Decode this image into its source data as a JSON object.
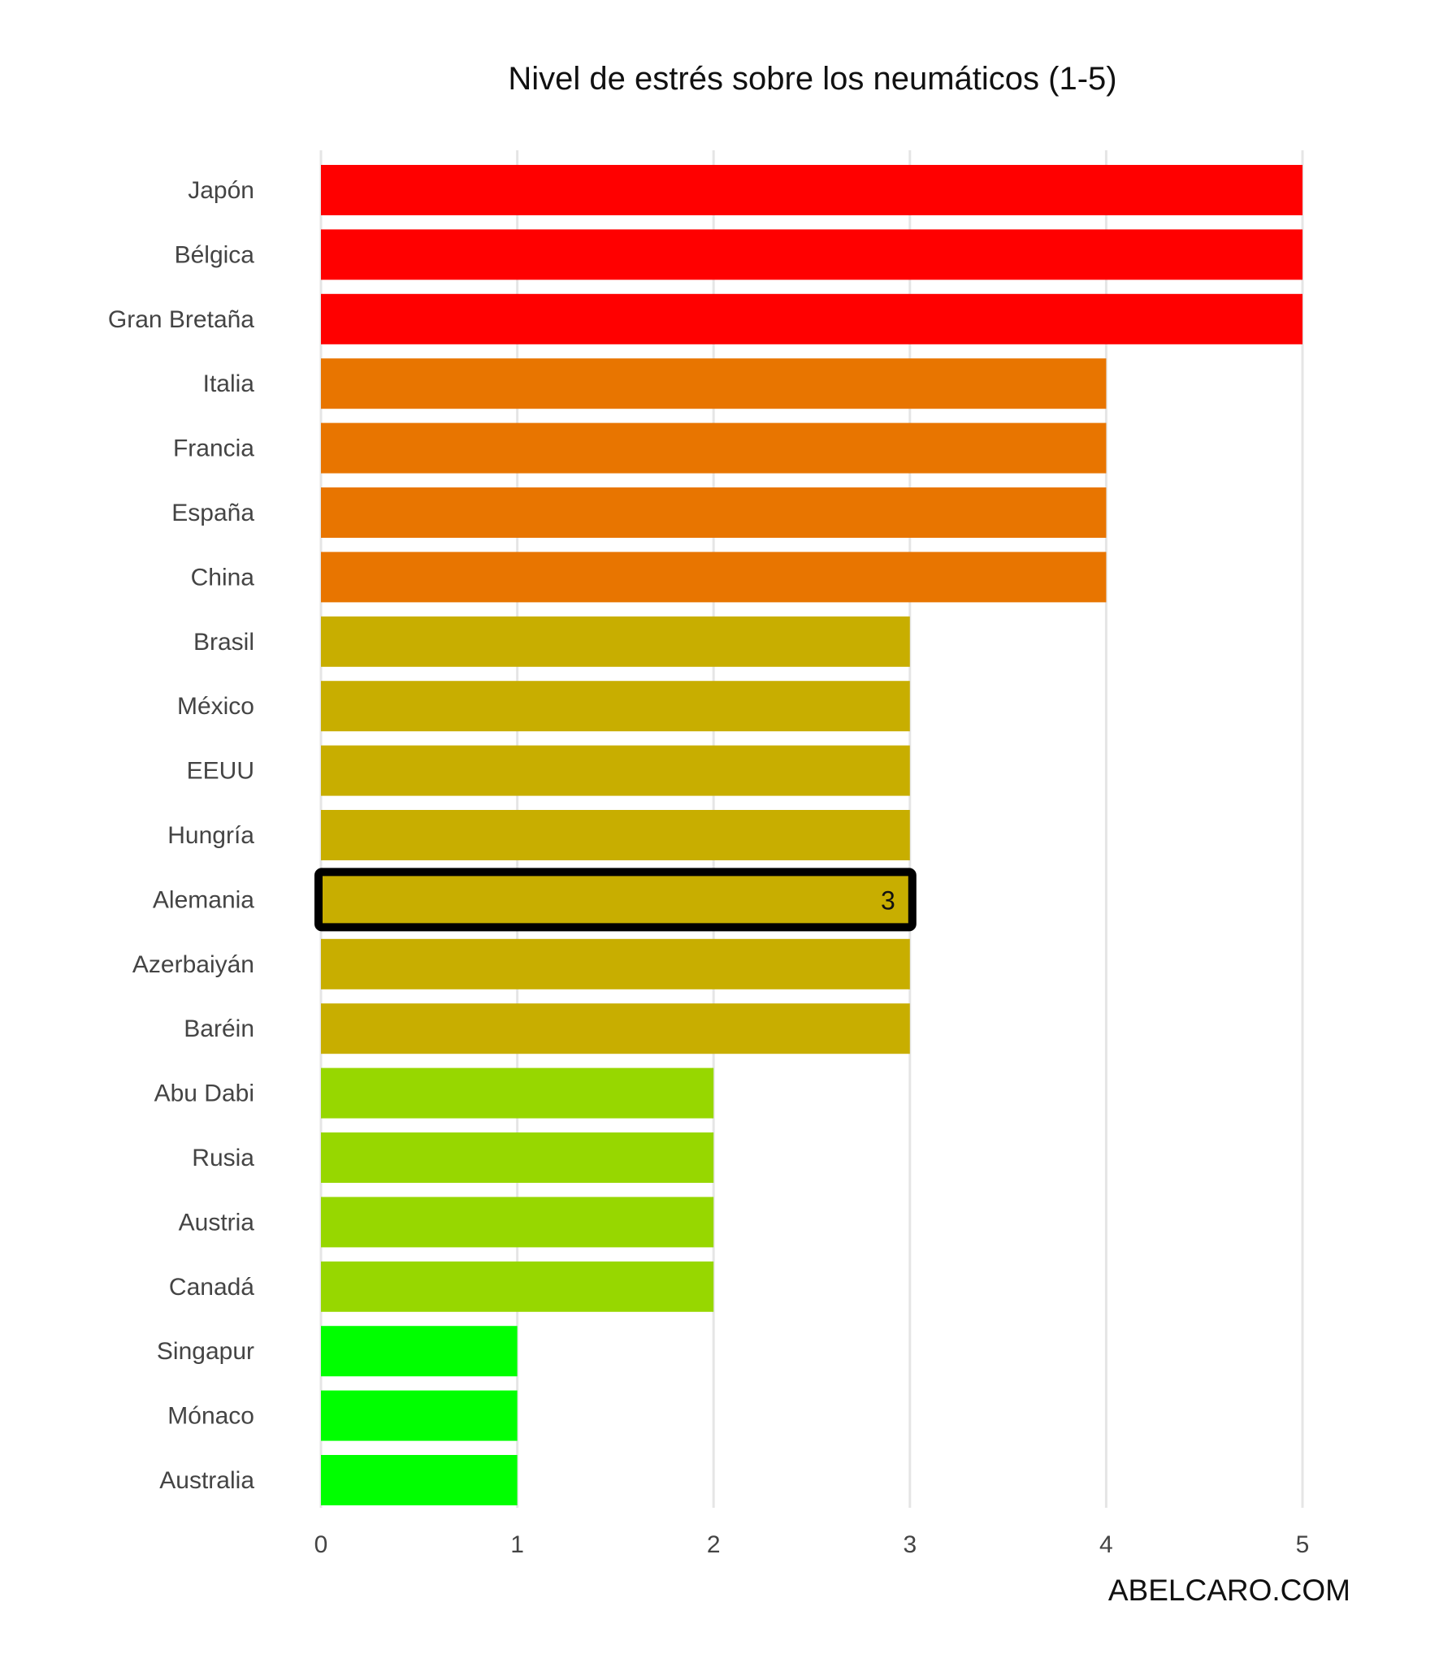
{
  "chart_data": {
    "type": "bar",
    "orientation": "horizontal",
    "title": "Nivel de estrés sobre los neumáticos (1-5)",
    "xlabel": "",
    "ylabel": "",
    "xlim": [
      0,
      5
    ],
    "x_ticks": [
      "0",
      "1",
      "2",
      "3",
      "4",
      "5"
    ],
    "grid": "vertical",
    "legend": "none",
    "categories": [
      "Japón",
      "Bélgica",
      "Gran Bretaña",
      "Italia",
      "Francia",
      "España",
      "China",
      "Brasil",
      "México",
      "EEUU",
      "Hungría",
      "Alemania",
      "Azerbaiyán",
      "Baréin",
      "Abu Dabi",
      "Rusia",
      "Austria",
      "Canadá",
      "Singapur",
      "Mónaco",
      "Australia"
    ],
    "values": [
      5,
      5,
      5,
      4,
      4,
      4,
      4,
      3,
      3,
      3,
      3,
      3,
      3,
      3,
      2,
      2,
      2,
      2,
      1,
      1,
      1
    ],
    "level_colors": {
      "5": "#ff0000",
      "4": "#e87500",
      "3": "#c8ae00",
      "2": "#97d700",
      "1": "#00ff00"
    },
    "highlight": {
      "category": "Alemania",
      "value_label": "3",
      "border_color": "#000000"
    }
  },
  "watermark": "ABELCARO.COM"
}
